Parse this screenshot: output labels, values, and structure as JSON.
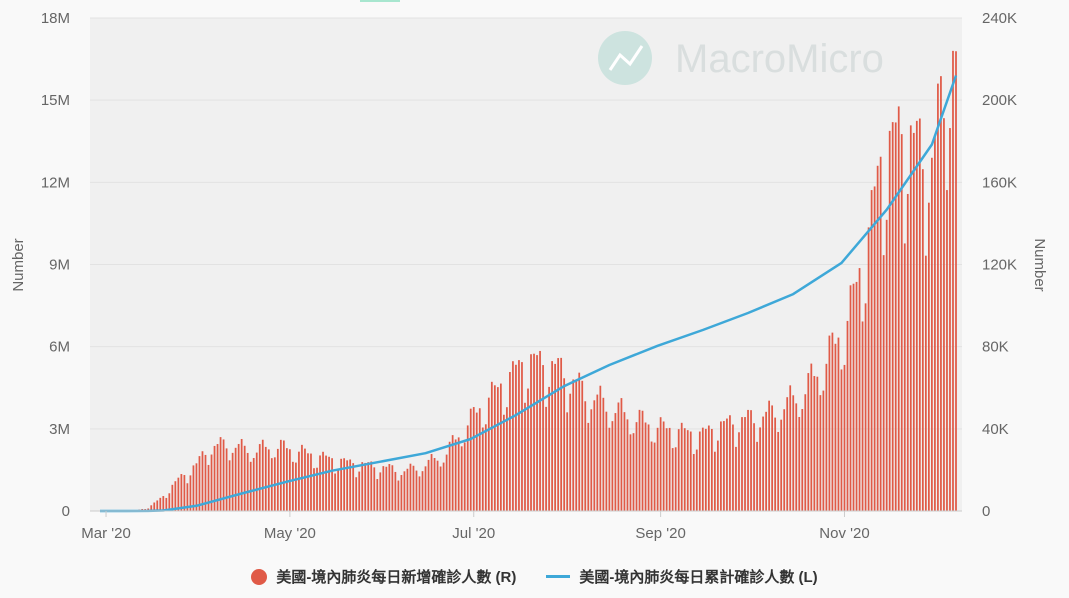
{
  "colors": {
    "bars": "#e05a47",
    "line": "#3ea8d8",
    "grid": "#e2e2e2",
    "plot_bg": "#f0f0f0",
    "page_bg": "#f9f9f9",
    "watermark": "#cde3df"
  },
  "watermark": {
    "text": "MacroMicro",
    "icon": "trend-logo-icon"
  },
  "legend": {
    "bars_label": "美國-境內肺炎每日新增確診人數 (R)",
    "line_label": "美國-境內肺炎每日累計確診人數 (L)"
  },
  "chart_data": {
    "type": "bar",
    "title": "",
    "x_ticks": [
      "Mar '20",
      "May '20",
      "Jul '20",
      "Sep '20",
      "Nov '20"
    ],
    "left_axis": {
      "label": "Number",
      "ticks": [
        "0",
        "3M",
        "6M",
        "9M",
        "12M",
        "15M",
        "18M"
      ],
      "range": [
        0,
        18000000
      ]
    },
    "right_axis": {
      "label": "Number",
      "ticks": [
        "0",
        "40K",
        "80K",
        "120K",
        "160K",
        "200K",
        "240K"
      ],
      "range": [
        0,
        240000
      ]
    },
    "grid": true,
    "legend_position": "bottom-center",
    "date_range": [
      "2020-02-28",
      "2020-12-08"
    ],
    "series": [
      {
        "name": "美國-境內肺炎每日新增確診人數 (R)",
        "type": "bar",
        "axis": "right",
        "anchors": [
          [
            "2020-02-28",
            0
          ],
          [
            "2020-03-10",
            0
          ],
          [
            "2020-03-15",
            1500
          ],
          [
            "2020-03-20",
            7000
          ],
          [
            "2020-03-25",
            15000
          ],
          [
            "2020-03-31",
            22000
          ],
          [
            "2020-04-04",
            30000
          ],
          [
            "2020-04-10",
            32000
          ],
          [
            "2020-04-15",
            30000
          ],
          [
            "2020-04-20",
            29000
          ],
          [
            "2020-04-25",
            31000
          ],
          [
            "2020-04-30",
            30000
          ],
          [
            "2020-05-10",
            26000
          ],
          [
            "2020-05-20",
            23000
          ],
          [
            "2020-05-31",
            21000
          ],
          [
            "2020-06-08",
            19000
          ],
          [
            "2020-06-15",
            22000
          ],
          [
            "2020-06-22",
            28000
          ],
          [
            "2020-06-28",
            40000
          ],
          [
            "2020-07-05",
            52000
          ],
          [
            "2020-07-12",
            62000
          ],
          [
            "2020-07-18",
            71000
          ],
          [
            "2020-07-24",
            70000
          ],
          [
            "2020-07-31",
            66000
          ],
          [
            "2020-08-07",
            56000
          ],
          [
            "2020-08-15",
            50000
          ],
          [
            "2020-08-22",
            45000
          ],
          [
            "2020-08-31",
            40000
          ],
          [
            "2020-09-07",
            38000
          ],
          [
            "2020-09-14",
            36000
          ],
          [
            "2020-09-20",
            40000
          ],
          [
            "2020-09-27",
            43000
          ],
          [
            "2020-10-05",
            45000
          ],
          [
            "2020-10-12",
            50000
          ],
          [
            "2020-10-19",
            58000
          ],
          [
            "2020-10-26",
            72000
          ],
          [
            "2020-11-02",
            90000
          ],
          [
            "2020-11-09",
            130000
          ],
          [
            "2020-11-13",
            165000
          ],
          [
            "2020-11-20",
            180000
          ],
          [
            "2020-11-25",
            172000
          ],
          [
            "2020-11-30",
            165000
          ],
          [
            "2020-12-04",
            200000
          ],
          [
            "2020-12-08",
            210000
          ]
        ],
        "peak": [
          "2020-12-07",
          224000
        ]
      },
      {
        "name": "美國-境內肺炎每日累計確診人數 (L)",
        "type": "line",
        "axis": "left",
        "points": [
          [
            "2020-02-28",
            0
          ],
          [
            "2020-03-15",
            3000
          ],
          [
            "2020-03-20",
            19000
          ],
          [
            "2020-03-31",
            190000
          ],
          [
            "2020-04-15",
            640000
          ],
          [
            "2020-04-30",
            1070000
          ],
          [
            "2020-05-15",
            1470000
          ],
          [
            "2020-05-31",
            1800000
          ],
          [
            "2020-06-15",
            2110000
          ],
          [
            "2020-06-30",
            2630000
          ],
          [
            "2020-07-15",
            3500000
          ],
          [
            "2020-07-31",
            4560000
          ],
          [
            "2020-08-15",
            5330000
          ],
          [
            "2020-08-31",
            6030000
          ],
          [
            "2020-09-15",
            6610000
          ],
          [
            "2020-09-30",
            7230000
          ],
          [
            "2020-10-15",
            7920000
          ],
          [
            "2020-10-31",
            9060000
          ],
          [
            "2020-11-15",
            11000000
          ],
          [
            "2020-11-30",
            13380000
          ],
          [
            "2020-12-08",
            15900000
          ]
        ]
      }
    ]
  }
}
